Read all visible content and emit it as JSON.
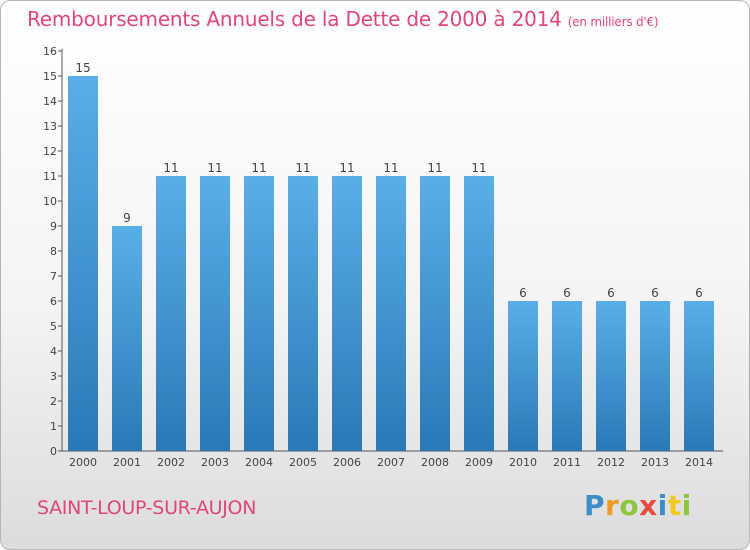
{
  "header": {
    "title": "Remboursements Annuels de la Dette de 2000 à 2014",
    "unit": "(en milliers d'€)"
  },
  "footer": {
    "town": "SAINT-LOUP-SUR-AUJON",
    "logo_text": "Proxiti"
  },
  "colors": {
    "title": "#e0457b",
    "bar_top": "#5aaee8",
    "bar_bottom": "#2a79b6"
  },
  "chart_data": {
    "type": "bar",
    "title": "Remboursements Annuels de la Dette de 2000 à 2014",
    "xlabel": "",
    "ylabel": "",
    "categories": [
      "2000",
      "2001",
      "2002",
      "2003",
      "2004",
      "2005",
      "2006",
      "2007",
      "2008",
      "2009",
      "2010",
      "2011",
      "2012",
      "2013",
      "2014"
    ],
    "values": [
      15,
      9,
      11,
      11,
      11,
      11,
      11,
      11,
      11,
      11,
      6,
      6,
      6,
      6,
      6
    ],
    "data_labels": [
      "15",
      "9",
      "11",
      "11",
      "11",
      "11",
      "11",
      "11",
      "11",
      "11",
      "6",
      "6",
      "6",
      "6",
      "6"
    ],
    "ylim": [
      0,
      16
    ],
    "yticks": [
      0,
      1,
      2,
      3,
      4,
      5,
      6,
      7,
      8,
      9,
      10,
      11,
      12,
      13,
      14,
      15,
      16
    ],
    "grid": false,
    "legend": "none"
  }
}
